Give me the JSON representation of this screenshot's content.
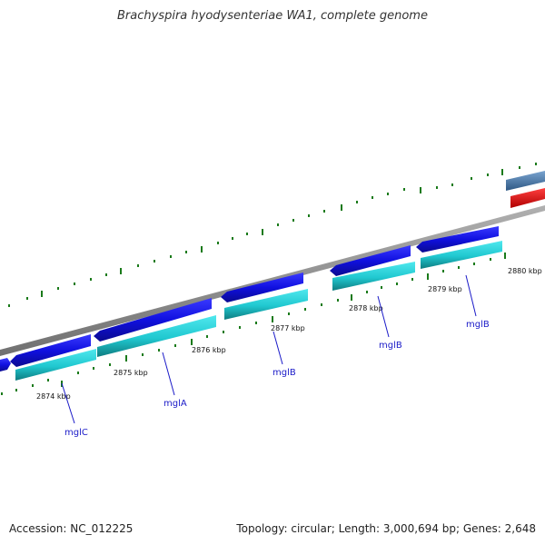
{
  "title": "Brachyspira hyodysenteriae WA1, complete genome",
  "footer": {
    "accession": "Accession: NC_012225",
    "summary": "Topology: circular; Length: 3,000,694 bp; Genes: 2,648"
  },
  "colors": {
    "backbone": "#888888",
    "feature_forward": "#1010e0",
    "feature_cds": "#20c8d0",
    "feature_rrna": "#ee1111",
    "feature_steel": "#4a78b0",
    "tick": "#1a7a1a",
    "gene_label": "#1a1ac8"
  },
  "scale_labels": [
    "2874 kbp",
    "2875 kbp",
    "2876 kbp",
    "2877 kbp",
    "2878 kbp",
    "2879 kbp",
    "2880 kbp"
  ],
  "gene_labels": [
    "mglC",
    "mglA",
    "mglB",
    "mglB",
    "mglB"
  ]
}
